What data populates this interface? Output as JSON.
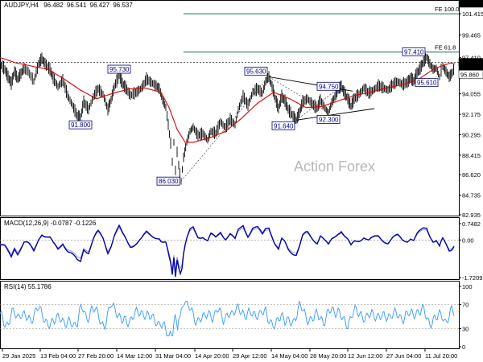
{
  "chart_data": [
    {
      "type": "candlestick",
      "title": "AUDJPY,H4",
      "ohlc": {
        "open": "96.482",
        "high": "96.541",
        "low": "96.427",
        "close": "96.537"
      },
      "ylim": [
        82.935,
        102.39
      ],
      "y_ticks": [
        "101.415",
        "99.465",
        "97.410",
        "95.860",
        "94.055",
        "92.175",
        "90.295",
        "88.415",
        "86.620",
        "84.735",
        "82.935"
      ],
      "x_ticks": [
        "29 Jan 2025",
        "13 Feb 04:00",
        "27 Feb 20:00",
        "14 Mar 12:00",
        "31 Mar 04:00",
        "14 Apr 20:00",
        "29 Apr 12:00",
        "14 May 04:00",
        "28 May 20:00",
        "12 Jun 12:00",
        "27 Jun 04:00",
        "11 Jul 20:00"
      ],
      "price_path": [
        [
          0,
          96.8
        ],
        [
          6,
          96.3
        ],
        [
          10,
          95.6
        ],
        [
          14,
          95.0
        ],
        [
          18,
          96.1
        ],
        [
          22,
          95.4
        ],
        [
          26,
          95.9
        ],
        [
          30,
          96.4
        ],
        [
          35,
          96.1
        ],
        [
          42,
          95.2
        ],
        [
          48,
          96.8
        ],
        [
          52,
          97.3
        ],
        [
          56,
          96.8
        ],
        [
          62,
          96.3
        ],
        [
          66,
          95.5
        ],
        [
          72,
          94.7
        ],
        [
          78,
          95.3
        ],
        [
          84,
          93.9
        ],
        [
          90,
          93.0
        ],
        [
          96,
          92.0
        ],
        [
          100,
          91.8
        ],
        [
          104,
          93.3
        ],
        [
          110,
          92.6
        ],
        [
          116,
          93.8
        ],
        [
          122,
          94.5
        ],
        [
          128,
          94.0
        ],
        [
          134,
          92.6
        ],
        [
          138,
          93.5
        ],
        [
          142,
          94.7
        ],
        [
          148,
          95.73
        ],
        [
          152,
          95.0
        ],
        [
          156,
          94.6
        ],
        [
          162,
          93.9
        ],
        [
          170,
          94.2
        ],
        [
          176,
          94.6
        ],
        [
          182,
          95.4
        ],
        [
          188,
          95.1
        ],
        [
          194,
          94.8
        ],
        [
          198,
          94.5
        ],
        [
          202,
          93.5
        ],
        [
          206,
          92.8
        ],
        [
          209,
          91.2
        ],
        [
          212,
          89.5
        ],
        [
          214,
          87.8
        ],
        [
          216,
          89.6
        ],
        [
          218,
          87.0
        ],
        [
          220,
          88.7
        ],
        [
          222,
          87.5
        ],
        [
          225,
          86.03
        ],
        [
          228,
          88.2
        ],
        [
          232,
          89.6
        ],
        [
          236,
          90.6
        ],
        [
          240,
          91.0
        ],
        [
          246,
          90.2
        ],
        [
          252,
          90.4
        ],
        [
          258,
          89.8
        ],
        [
          262,
          90.6
        ],
        [
          268,
          90.4
        ],
        [
          274,
          91.5
        ],
        [
          280,
          90.9
        ],
        [
          286,
          91.7
        ],
        [
          292,
          91.2
        ],
        [
          296,
          92.6
        ],
        [
          302,
          93.8
        ],
        [
          308,
          93.0
        ],
        [
          314,
          94.2
        ],
        [
          320,
          94.5
        ],
        [
          326,
          94.1
        ],
        [
          330,
          95.2
        ],
        [
          334,
          95.63
        ],
        [
          338,
          94.7
        ],
        [
          342,
          93.6
        ],
        [
          346,
          92.7
        ],
        [
          350,
          93.8
        ],
        [
          354,
          93.4
        ],
        [
          358,
          92.6
        ],
        [
          364,
          92.0
        ],
        [
          368,
          91.64
        ],
        [
          372,
          92.3
        ],
        [
          376,
          93.3
        ],
        [
          382,
          93.6
        ],
        [
          388,
          93.1
        ],
        [
          394,
          92.7
        ],
        [
          398,
          93.5
        ],
        [
          404,
          92.7
        ],
        [
          408,
          92.3
        ],
        [
          412,
          93.2
        ],
        [
          416,
          93.8
        ],
        [
          420,
          94.4
        ],
        [
          424,
          94.75
        ],
        [
          428,
          94.1
        ],
        [
          432,
          93.6
        ],
        [
          436,
          92.9
        ],
        [
          440,
          93.6
        ],
        [
          446,
          94.0
        ],
        [
          452,
          94.6
        ],
        [
          458,
          94.1
        ],
        [
          464,
          94.4
        ],
        [
          470,
          94.8
        ],
        [
          476,
          94.6
        ],
        [
          482,
          94.4
        ],
        [
          488,
          94.9
        ],
        [
          494,
          95.2
        ],
        [
          500,
          94.9
        ],
        [
          506,
          95.1
        ],
        [
          510,
          95.5
        ],
        [
          514,
          95.2
        ],
        [
          518,
          95.9
        ],
        [
          522,
          96.4
        ],
        [
          526,
          97.0
        ],
        [
          530,
          97.41
        ],
        [
          534,
          96.8
        ],
        [
          538,
          96.3
        ],
        [
          542,
          96.4
        ],
        [
          546,
          95.61
        ],
        [
          548,
          96.2
        ],
        [
          550,
          96.6
        ],
        [
          554,
          96.1
        ],
        [
          558,
          95.6
        ],
        [
          562,
          96.0
        ],
        [
          565,
          96.537
        ]
      ],
      "ma_path": [
        [
          0,
          97.4
        ],
        [
          20,
          96.9
        ],
        [
          40,
          96.6
        ],
        [
          60,
          96.3
        ],
        [
          80,
          95.4
        ],
        [
          100,
          94.4
        ],
        [
          120,
          93.6
        ],
        [
          140,
          94.1
        ],
        [
          160,
          94.5
        ],
        [
          180,
          94.6
        ],
        [
          200,
          94.2
        ],
        [
          210,
          92.8
        ],
        [
          220,
          90.8
        ],
        [
          230,
          89.6
        ],
        [
          240,
          89.6
        ],
        [
          260,
          90.0
        ],
        [
          280,
          90.6
        ],
        [
          300,
          91.8
        ],
        [
          320,
          93.2
        ],
        [
          340,
          94.2
        ],
        [
          360,
          93.6
        ],
        [
          380,
          92.8
        ],
        [
          400,
          92.9
        ],
        [
          420,
          93.4
        ],
        [
          440,
          93.9
        ],
        [
          460,
          94.2
        ],
        [
          480,
          94.6
        ],
        [
          500,
          94.9
        ],
        [
          520,
          95.4
        ],
        [
          540,
          96.4
        ],
        [
          560,
          96.9
        ],
        [
          565,
          96.8
        ]
      ],
      "price_labels": [
        {
          "text": "95.730",
          "x": 148,
          "y": 95.73,
          "pos": "above"
        },
        {
          "text": "91.800",
          "x": 100,
          "y": 91.8,
          "pos": "below"
        },
        {
          "text": "86.030",
          "x": 225,
          "y": 86.03,
          "pos": "left"
        },
        {
          "text": "95.630",
          "x": 334,
          "y": 95.63,
          "pos": "above-left"
        },
        {
          "text": "94.750",
          "x": 424,
          "y": 94.75,
          "pos": "left"
        },
        {
          "text": "91.640",
          "x": 368,
          "y": 91.64,
          "pos": "below-left"
        },
        {
          "text": "92.300",
          "x": 408,
          "y": 92.3,
          "pos": "below"
        },
        {
          "text": "97.410",
          "x": 530,
          "y": 97.41,
          "pos": "above-left"
        },
        {
          "text": "95.610",
          "x": 546,
          "y": 95.61,
          "pos": "below-left"
        }
      ],
      "fib_levels": [
        {
          "label": "FE 100.0",
          "value": 101.415
        },
        {
          "label": "FE 61.8",
          "value": 97.9
        }
      ],
      "current_price_labels": [
        "102.390",
        "96.950",
        "96.537",
        "95.860"
      ],
      "watermark": "Action Forex"
    },
    {
      "type": "line",
      "title": "MACD(12,26,9) -0.0787 -0.1226",
      "ylim": [
        -1.7209,
        0.7482
      ],
      "y_ticks": [
        "0.7482",
        "0.00",
        "-1.7209"
      ],
      "signal_note": "macd line with signal"
    },
    {
      "type": "line",
      "title": "RSI(14) 55.1786",
      "ylim": [
        0,
        100
      ],
      "y_ticks": [
        "100",
        "70",
        "30",
        "0"
      ]
    }
  ],
  "colors": {
    "candle": "#000000",
    "ma": "#e00000",
    "macd": "#0000aa",
    "signal": "#8888cc",
    "rsi": "#3399ff",
    "box": "#00007a"
  }
}
